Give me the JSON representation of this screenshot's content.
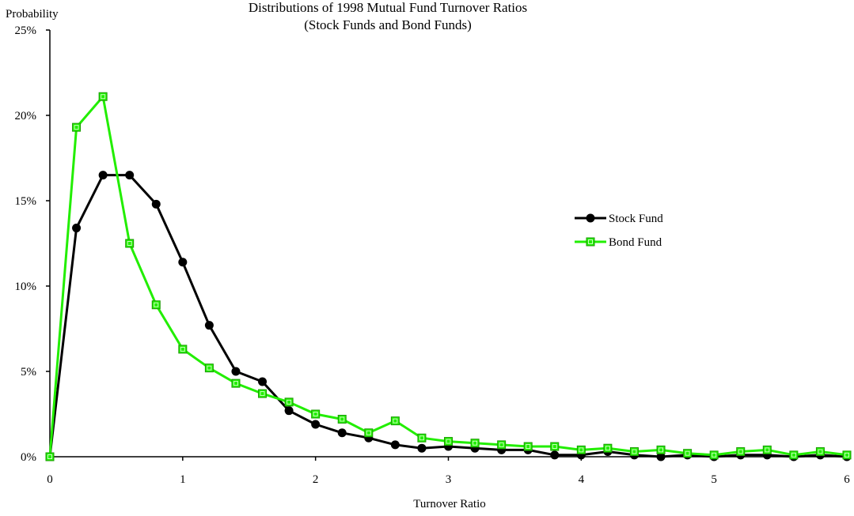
{
  "chart_data": {
    "type": "line",
    "title": "Distributions of 1998 Mutual Fund Turnover Ratios",
    "subtitle": "(Stock Funds and Bond Funds)",
    "xlabel": "Turnover Ratio",
    "ylabel": "Probability",
    "xlim": [
      0,
      6
    ],
    "ylim": [
      0,
      25
    ],
    "x_ticks": [
      "0",
      "1",
      "2",
      "3",
      "4",
      "5",
      "6"
    ],
    "y_ticks": [
      "0%",
      "5%",
      "10%",
      "15%",
      "20%",
      "25%"
    ],
    "grid": false,
    "legend_position": "right",
    "x": [
      0,
      0.2,
      0.4,
      0.6,
      0.8,
      1.0,
      1.2,
      1.4,
      1.6,
      1.8,
      2.0,
      2.2,
      2.4,
      2.6,
      2.8,
      3.0,
      3.2,
      3.4,
      3.6,
      3.8,
      4.0,
      4.2,
      4.4,
      4.6,
      4.8,
      5.0,
      5.2,
      5.4,
      5.6,
      5.8,
      6.0
    ],
    "series": [
      {
        "name": "Stock Fund",
        "color": "#000000",
        "marker": "circle",
        "values": [
          0.0,
          13.4,
          16.5,
          16.5,
          14.8,
          11.4,
          7.7,
          5.0,
          4.4,
          2.7,
          1.9,
          1.4,
          1.1,
          0.7,
          0.5,
          0.6,
          0.5,
          0.4,
          0.4,
          0.1,
          0.1,
          0.3,
          0.1,
          0.0,
          0.1,
          0.0,
          0.1,
          0.1,
          0.0,
          0.1,
          0.0
        ]
      },
      {
        "name": "Bond Fund",
        "color": "#22ee00",
        "marker": "square",
        "values": [
          0.0,
          19.3,
          21.1,
          12.5,
          8.9,
          6.3,
          5.2,
          4.3,
          3.7,
          3.2,
          2.5,
          2.2,
          1.4,
          2.1,
          1.1,
          0.9,
          0.8,
          0.7,
          0.6,
          0.6,
          0.4,
          0.5,
          0.3,
          0.4,
          0.2,
          0.1,
          0.3,
          0.4,
          0.1,
          0.3,
          0.1
        ]
      }
    ]
  }
}
